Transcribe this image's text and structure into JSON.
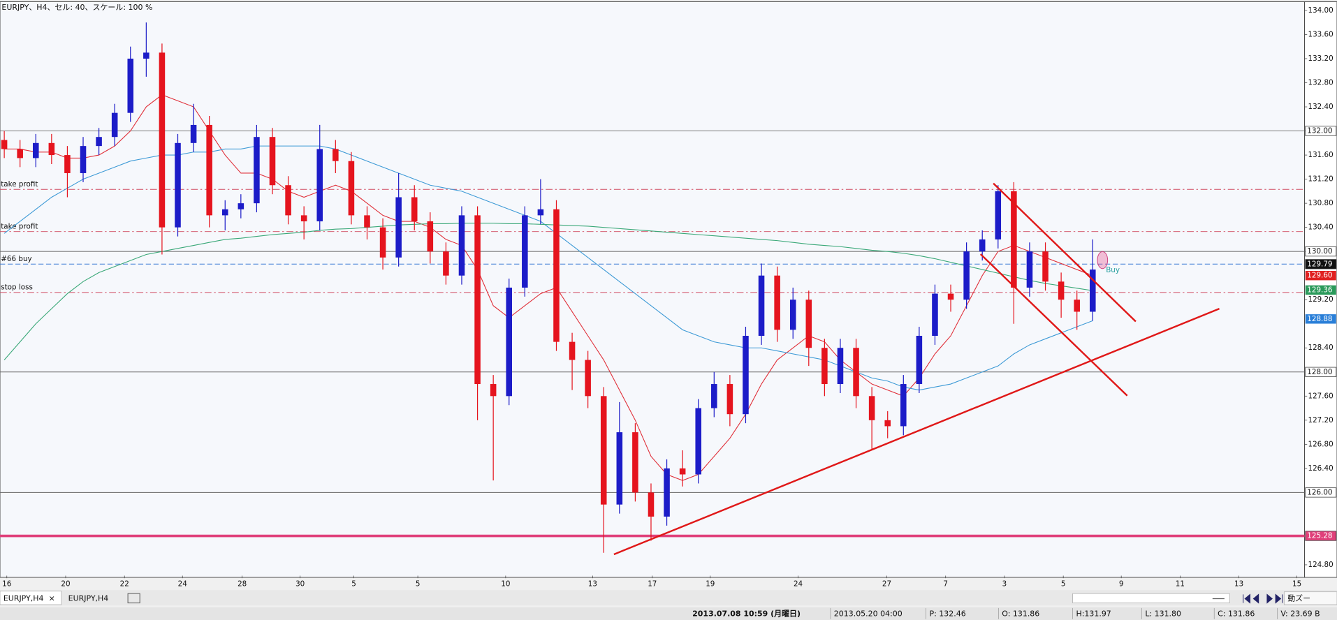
{
  "header": "EURJPY、H4、セル: 40、スケール: 100 %",
  "chart_data": {
    "type": "candlestick",
    "up_color": "#1c1cc8",
    "down_color": "#e5141e",
    "open": [
      131.85,
      131.7,
      131.55,
      131.8,
      131.6,
      131.3,
      131.75,
      131.9,
      132.3,
      133.2,
      133.3,
      130.4,
      131.8,
      132.1,
      130.6,
      130.7,
      130.8,
      131.9,
      131.1,
      130.6,
      130.5,
      131.7,
      131.5,
      130.6,
      130.4,
      129.9,
      130.9,
      130.5,
      130.0,
      129.6,
      130.6,
      127.8,
      127.6,
      129.4,
      130.6,
      130.7,
      128.5,
      128.2,
      127.6,
      125.8,
      127.0,
      126.0,
      125.6,
      126.4,
      126.3,
      127.4,
      127.8,
      127.3,
      128.6,
      129.6,
      128.7,
      129.2,
      128.4,
      127.8,
      128.4,
      127.6,
      127.2,
      127.1,
      127.8,
      128.6,
      129.3,
      129.2,
      130.0,
      130.2,
      131.0,
      129.4,
      130.0,
      129.5,
      129.2,
      129.0
    ],
    "high": [
      132.0,
      131.85,
      131.95,
      131.95,
      131.75,
      131.9,
      132.05,
      132.45,
      133.4,
      133.8,
      133.45,
      131.95,
      132.45,
      132.25,
      130.85,
      130.95,
      132.1,
      132.05,
      131.25,
      130.75,
      132.1,
      131.85,
      131.65,
      130.75,
      130.55,
      131.3,
      131.1,
      130.65,
      130.15,
      130.75,
      130.75,
      127.95,
      129.55,
      130.75,
      131.2,
      130.85,
      128.65,
      128.35,
      127.75,
      127.5,
      127.15,
      126.15,
      126.55,
      126.7,
      127.55,
      128.0,
      127.95,
      128.75,
      129.8,
      129.75,
      129.4,
      129.35,
      128.55,
      128.55,
      128.55,
      127.75,
      127.35,
      127.95,
      128.75,
      129.45,
      129.45,
      130.15,
      130.35,
      131.1,
      131.15,
      130.15,
      130.15,
      129.65,
      129.35,
      130.2
    ],
    "low": [
      131.55,
      131.4,
      131.4,
      131.45,
      130.9,
      131.15,
      131.6,
      131.75,
      132.15,
      132.9,
      129.95,
      130.25,
      131.65,
      130.4,
      130.35,
      130.55,
      130.65,
      130.95,
      130.45,
      130.2,
      130.35,
      131.3,
      130.45,
      130.2,
      129.7,
      129.75,
      130.35,
      129.8,
      129.45,
      129.45,
      127.2,
      126.2,
      127.45,
      129.25,
      130.45,
      128.35,
      127.7,
      127.4,
      125.0,
      125.65,
      125.85,
      125.2,
      125.45,
      126.1,
      126.15,
      127.25,
      127.1,
      127.15,
      128.45,
      128.5,
      128.55,
      128.1,
      127.6,
      127.65,
      127.4,
      126.7,
      126.9,
      126.95,
      127.65,
      128.45,
      129.0,
      129.05,
      129.85,
      130.05,
      128.8,
      129.25,
      129.35,
      128.9,
      128.7,
      128.85
    ],
    "close": [
      131.7,
      131.55,
      131.8,
      131.6,
      131.3,
      131.75,
      131.9,
      132.3,
      133.2,
      133.3,
      130.4,
      131.8,
      132.1,
      130.6,
      130.7,
      130.8,
      131.9,
      131.1,
      130.6,
      130.5,
      131.7,
      131.5,
      130.6,
      130.4,
      129.9,
      130.9,
      130.5,
      130.0,
      129.6,
      130.6,
      127.8,
      127.6,
      129.4,
      130.6,
      130.7,
      128.5,
      128.2,
      127.6,
      125.8,
      127.0,
      126.0,
      125.6,
      126.4,
      126.3,
      127.4,
      127.8,
      127.3,
      128.6,
      129.6,
      128.7,
      129.2,
      128.4,
      127.8,
      128.4,
      127.6,
      127.2,
      127.1,
      127.8,
      128.6,
      129.3,
      129.2,
      130.0,
      130.2,
      131.0,
      129.4,
      130.0,
      129.5,
      129.2,
      129.0,
      129.7
    ],
    "moving_averages": [
      {
        "color": "#e0303a",
        "values": [
          131.7,
          131.7,
          131.65,
          131.65,
          131.55,
          131.55,
          131.6,
          131.75,
          132.0,
          132.4,
          132.6,
          132.5,
          132.4,
          132.0,
          131.6,
          131.3,
          131.3,
          131.2,
          131.0,
          130.9,
          131.0,
          131.1,
          131.0,
          130.8,
          130.6,
          130.5,
          130.5,
          130.4,
          130.2,
          130.1,
          129.7,
          129.1,
          128.9,
          129.1,
          129.3,
          129.4,
          129.0,
          128.6,
          128.2,
          127.7,
          127.2,
          126.6,
          126.3,
          126.2,
          126.3,
          126.6,
          126.9,
          127.3,
          127.8,
          128.2,
          128.4,
          128.6,
          128.5,
          128.2,
          128.0,
          127.8,
          127.7,
          127.6,
          127.9,
          128.3,
          128.6,
          129.1,
          129.6,
          130.0,
          130.1,
          130.0,
          129.9,
          129.8,
          129.7,
          129.6
        ]
      },
      {
        "color": "#3d9ad6",
        "values": [
          130.3,
          130.5,
          130.7,
          130.9,
          131.05,
          131.2,
          131.3,
          131.4,
          131.5,
          131.55,
          131.6,
          131.6,
          131.65,
          131.65,
          131.7,
          131.7,
          131.75,
          131.75,
          131.75,
          131.75,
          131.75,
          131.7,
          131.6,
          131.5,
          131.4,
          131.3,
          131.2,
          131.1,
          131.05,
          131.0,
          130.9,
          130.8,
          130.7,
          130.6,
          130.5,
          130.3,
          130.1,
          129.9,
          129.7,
          129.5,
          129.3,
          129.1,
          128.9,
          128.7,
          128.6,
          128.5,
          128.45,
          128.4,
          128.4,
          128.35,
          128.3,
          128.25,
          128.2,
          128.1,
          128.0,
          127.9,
          127.85,
          127.75,
          127.7,
          127.75,
          127.8,
          127.9,
          128.0,
          128.1,
          128.3,
          128.45,
          128.55,
          128.65,
          128.75,
          128.85
        ]
      },
      {
        "color": "#3aa878",
        "values": [
          128.2,
          128.5,
          128.8,
          129.05,
          129.3,
          129.5,
          129.65,
          129.75,
          129.85,
          129.95,
          130.0,
          130.05,
          130.1,
          130.15,
          130.2,
          130.22,
          130.25,
          130.28,
          130.3,
          130.32,
          130.35,
          130.37,
          130.38,
          130.4,
          130.42,
          130.44,
          130.45,
          130.46,
          130.46,
          130.47,
          130.47,
          130.47,
          130.46,
          130.46,
          130.45,
          130.44,
          130.43,
          130.42,
          130.4,
          130.38,
          130.36,
          130.34,
          130.32,
          130.3,
          130.28,
          130.26,
          130.24,
          130.22,
          130.2,
          130.18,
          130.15,
          130.12,
          130.1,
          130.08,
          130.05,
          130.02,
          130.0,
          129.97,
          129.93,
          129.88,
          129.82,
          129.76,
          129.7,
          129.64,
          129.58,
          129.52,
          129.47,
          129.43,
          129.39,
          129.35
        ]
      }
    ],
    "x_tick_labels": [
      "16",
      "20",
      "22",
      "24",
      "28",
      "30",
      "5",
      "5",
      "10",
      "13",
      "17",
      "19",
      "24",
      "27",
      "7",
      "3",
      "5",
      "9",
      "11",
      "13",
      "15"
    ],
    "ylim": [
      124.62,
      134.06
    ],
    "yticks": [
      {
        "value": 134,
        "label": "134.00"
      },
      {
        "value": 133.6,
        "label": "133.60"
      },
      {
        "value": 133.2,
        "label": "133.20"
      },
      {
        "value": 132.8,
        "label": "132.80"
      },
      {
        "value": 132.4,
        "label": "132.40"
      },
      {
        "value": 132,
        "label": "132.00"
      },
      {
        "value": 131.6,
        "label": "131.60"
      },
      {
        "value": 131.2,
        "label": "131.20"
      },
      {
        "value": 130.8,
        "label": "130.80"
      },
      {
        "value": 130.4,
        "label": "130.40"
      },
      {
        "value": 130,
        "label": "130.00"
      },
      {
        "value": 129.2,
        "label": "129.20"
      },
      {
        "value": 128.4,
        "label": "128.40"
      },
      {
        "value": 127.6,
        "label": "127.60"
      },
      {
        "value": 127.2,
        "label": "127.20"
      },
      {
        "value": 126.8,
        "label": "126.80"
      },
      {
        "value": 126.4,
        "label": "126.40"
      },
      {
        "value": 124.8,
        "label": "124.80"
      }
    ],
    "grid": false,
    "levels": [
      {
        "value": 132,
        "color": "#666666",
        "box": "132.00"
      },
      {
        "value": 130,
        "color": "#666666",
        "box": "130.00"
      },
      {
        "value": 128,
        "color": "#666666",
        "box": "128.00"
      },
      {
        "value": 126,
        "color": "#666666",
        "box": "126.00"
      },
      {
        "value": 125.28,
        "color": "#e0407a",
        "box": "125.28",
        "width": 3
      },
      {
        "value": 131.03,
        "color": "#d04a60",
        "label": "take profit",
        "dash": "8 3 2 3"
      },
      {
        "value": 130.33,
        "color": "#d04a60",
        "label": "take profit",
        "dash": "8 3 2 3"
      },
      {
        "value": 129.79,
        "color": "#3a7bd5",
        "label": "#66 buy",
        "dash": "6 3",
        "box": "129.79"
      },
      {
        "value": 129.32,
        "color": "#d04a60",
        "label": "stop loss",
        "dash": "8 3 2 3"
      }
    ],
    "price_markers": [
      {
        "value": 129.6,
        "label": "129.60",
        "color": "#e02020"
      },
      {
        "value": 129.36,
        "label": "129.36",
        "color": "#2a9a5a"
      },
      {
        "value": 128.88,
        "label": "128.88",
        "color": "#2a7fd8"
      }
    ],
    "annotations": [
      {
        "text": "Buy",
        "color": "#2aa0a0"
      }
    ]
  },
  "tabs": [
    {
      "label": "EURJPY,H4",
      "close": "×"
    },
    {
      "label": "EURJPY,H4"
    }
  ],
  "zoom_button": "動ズー",
  "status_bar": [
    "2013.07.08 10:59 (月曜日)",
    "2013.05.20 04:00",
    "P: 132.46",
    "O: 131.86",
    "H:131.97",
    "L: 131.80",
    "C: 131.86",
    "V: 23.69 B"
  ]
}
